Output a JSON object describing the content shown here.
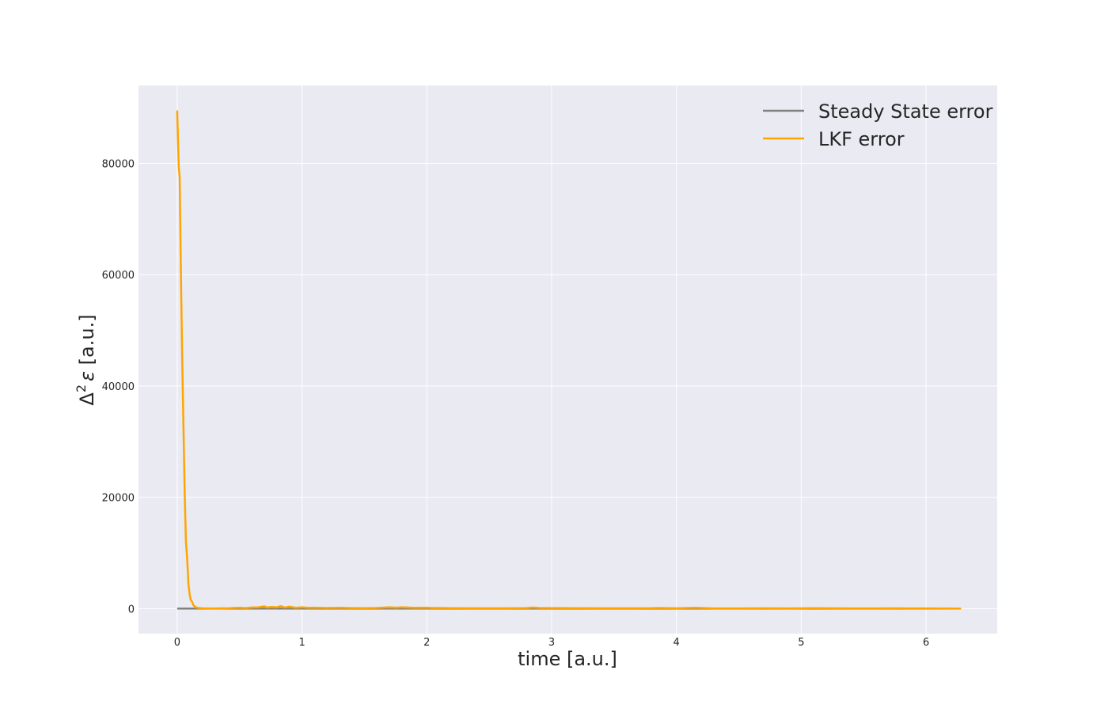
{
  "chart_data": {
    "type": "line",
    "title": "",
    "xlabel": "time [a.u.]",
    "ylabel_prefix": "Δ",
    "ylabel_sup": "2",
    "ylabel_symbol": "ε",
    "ylabel_suffix": " [a.u.]",
    "xlim": [
      -0.31,
      6.57
    ],
    "ylim": [
      -4500,
      94000
    ],
    "xticks": [
      0,
      1,
      2,
      3,
      4,
      5,
      6
    ],
    "yticks": [
      0,
      20000,
      40000,
      60000,
      80000
    ],
    "grid": true,
    "legend_position": "top-right",
    "colors": {
      "plot_bg": "#eaeaf2",
      "grid": "#ffffff",
      "steady": "#808080",
      "lkf": "#ffa500"
    },
    "series": [
      {
        "name": "Steady State error",
        "color": "#808080",
        "x": [
          0,
          6.28
        ],
        "y": [
          10,
          10
        ]
      },
      {
        "name": "LKF error",
        "color": "#ffa500",
        "x": [
          0,
          0.012,
          0.02,
          0.03,
          0.04,
          0.05,
          0.06,
          0.07,
          0.08,
          0.09,
          0.1,
          0.11,
          0.12,
          0.13,
          0.14,
          0.15,
          0.16,
          0.18,
          0.2,
          0.25,
          0.3,
          0.35,
          0.4,
          0.45,
          0.5,
          0.55,
          0.6,
          0.65,
          0.7,
          0.72,
          0.75,
          0.8,
          0.83,
          0.86,
          0.9,
          0.95,
          1.0,
          1.05,
          1.1,
          1.2,
          1.3,
          1.4,
          1.5,
          1.6,
          1.7,
          1.75,
          1.8,
          1.9,
          2.0,
          2.05,
          2.1,
          2.2,
          2.4,
          2.6,
          2.8,
          2.85,
          2.9,
          3.0,
          3.2,
          3.4,
          3.6,
          3.8,
          3.85,
          4.0,
          4.15,
          4.3,
          4.5,
          4.7,
          4.9,
          5.1,
          5.2,
          5.4,
          5.6,
          5.8,
          6.0,
          6.2,
          6.28
        ],
        "y": [
          89500,
          79500,
          77500,
          60000,
          45000,
          33000,
          21000,
          12000,
          9000,
          4500,
          2500,
          1500,
          1200,
          600,
          400,
          250,
          150,
          100,
          60,
          40,
          30,
          60,
          50,
          120,
          150,
          100,
          200,
          250,
          400,
          200,
          300,
          250,
          450,
          200,
          350,
          150,
          250,
          150,
          180,
          120,
          150,
          100,
          80,
          120,
          250,
          180,
          250,
          150,
          180,
          100,
          120,
          80,
          70,
          60,
          100,
          200,
          120,
          100,
          80,
          60,
          70,
          80,
          120,
          60,
          150,
          50,
          40,
          60,
          50,
          80,
          60,
          50,
          40,
          60,
          40,
          30,
          20
        ]
      }
    ]
  }
}
